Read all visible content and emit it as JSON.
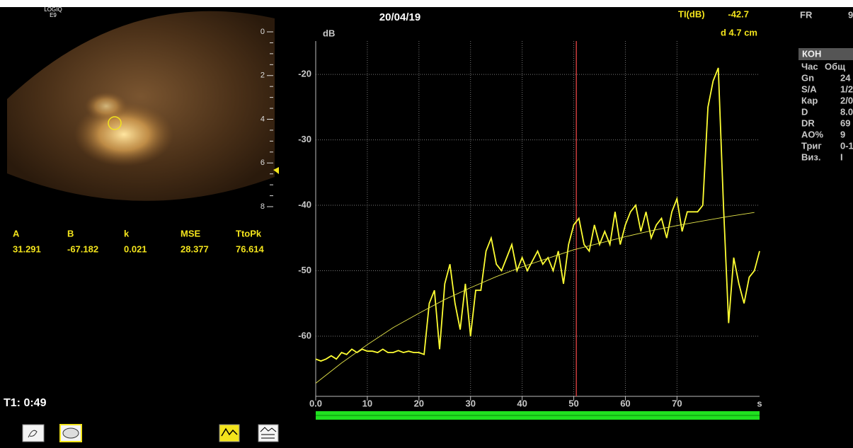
{
  "device": {
    "model": "LOGIQ",
    "model_line2": "E9"
  },
  "image": {
    "depth_scale": [
      0,
      2,
      4,
      6,
      8
    ]
  },
  "fit_table": {
    "headers": [
      "A",
      "B",
      "k",
      "MSE",
      "TtoPk"
    ],
    "values": [
      31.291,
      -67.182,
      0.021,
      28.377,
      76.614
    ]
  },
  "timer": "T1: 0:49",
  "readout": {
    "date": "20/04/19",
    "ti_label": "TI(dB)",
    "ti_value": "-42.7",
    "depth": "d 4.7 cm"
  },
  "side_panel": {
    "fr_label": "FR",
    "fr_value": "9",
    "section": "КОН",
    "rows": [
      [
        "Час",
        "Общ"
      ],
      [
        "Gn",
        "24"
      ],
      [
        "S/A",
        "1/2"
      ],
      [
        "Кар",
        "2/0"
      ],
      [
        "D",
        "8.0"
      ],
      [
        "DR",
        "69"
      ],
      [
        "AO%",
        "9"
      ],
      [
        "Триг",
        "0-1"
      ],
      [
        "Виз.",
        "I"
      ]
    ]
  },
  "chart_data": {
    "type": "line",
    "y_label": "dB",
    "x_label": "s",
    "xlim": [
      0,
      86
    ],
    "ylim": [
      -69.2,
      -14.9
    ],
    "xticks": [
      {
        "value": 0,
        "label": "0.0"
      },
      10,
      20,
      30,
      40,
      50,
      60,
      70
    ],
    "yticks": [
      -20,
      -30,
      -40,
      -50,
      -60
    ],
    "grid": true,
    "cursor_x": 50.5,
    "cursor_color": "#c83c3c",
    "series": [
      {
        "color": "#ffff33",
        "x": [
          0,
          1,
          2,
          3,
          4,
          5,
          6,
          7,
          8,
          9,
          10,
          11,
          12,
          13,
          14,
          15,
          16,
          17,
          18,
          19,
          20,
          21,
          22,
          23,
          24,
          25,
          26,
          27,
          28,
          29,
          30,
          31,
          32,
          33,
          34,
          35,
          36,
          37,
          38,
          39,
          40,
          41,
          42,
          43,
          44,
          45,
          46,
          47,
          48,
          49,
          50,
          51,
          52,
          53,
          54,
          55,
          56,
          57,
          58,
          59,
          60,
          61,
          62,
          63,
          64,
          65,
          66,
          67,
          68,
          69,
          70,
          71,
          72,
          73,
          74,
          75,
          76,
          77,
          78,
          79,
          80,
          81,
          82,
          83,
          84,
          85,
          86
        ],
        "values": [
          -63.5,
          -63.8,
          -63.5,
          -63,
          -63.5,
          -62.5,
          -62.8,
          -62,
          -62.5,
          -62,
          -62.3,
          -62.3,
          -62.5,
          -62,
          -62.5,
          -62.5,
          -62.2,
          -62.5,
          -62.3,
          -62.5,
          -62.5,
          -62.8,
          -55,
          -53,
          -62,
          -52,
          -49,
          -55,
          -59,
          -52,
          -60,
          -53,
          -53,
          -47,
          -45,
          -49,
          -50,
          -48,
          -46,
          -50,
          -48,
          -50,
          -48.5,
          -47,
          -49,
          -48,
          -50,
          -47,
          -52,
          -46,
          -43,
          -42,
          -46,
          -47,
          -43,
          -46,
          -44,
          -46,
          -41,
          -46,
          -43,
          -41,
          -40,
          -44,
          -41,
          -45,
          -43,
          -42,
          -45,
          -41,
          -39,
          -44,
          -41,
          -41,
          -41,
          -40,
          -25,
          -21,
          -19,
          -40,
          -58,
          -48,
          -52,
          -55,
          -51,
          -50,
          -47
        ]
      },
      {
        "color": "#e6e64a",
        "x": [
          0,
          5,
          10,
          15,
          20,
          25,
          30,
          35,
          40,
          45,
          50,
          55,
          60,
          65,
          70,
          75,
          80,
          85
        ],
        "values": [
          -67.2,
          -64.1,
          -61.3,
          -58.7,
          -56.5,
          -54.4,
          -52.6,
          -50.9,
          -49.4,
          -48.1,
          -46.8,
          -45.8,
          -44.8,
          -43.9,
          -43.1,
          -42.4,
          -41.7,
          -41.1
        ]
      }
    ]
  }
}
